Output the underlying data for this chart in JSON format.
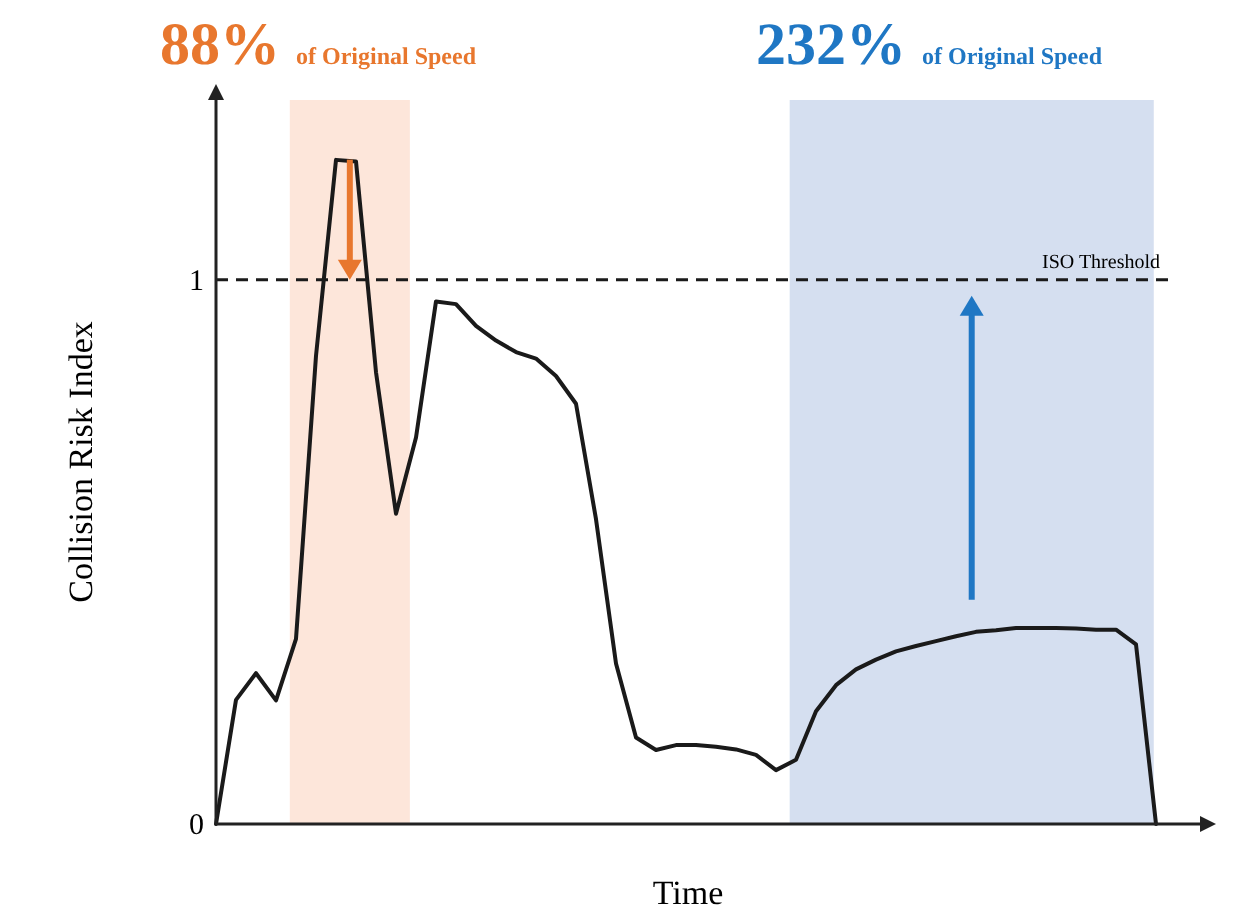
{
  "chart_data": {
    "type": "line",
    "xlabel": "Time",
    "ylabel": "Collision Risk Index",
    "categories": [
      null,
      null,
      null,
      null,
      null,
      null,
      null,
      null,
      null,
      null,
      null,
      null,
      null,
      null,
      null,
      null,
      null,
      null,
      null,
      null,
      null,
      null,
      null,
      null,
      null,
      null,
      null,
      null,
      null,
      null,
      null,
      null,
      null,
      null,
      null,
      null,
      null,
      null,
      null,
      null,
      null,
      null,
      null,
      null,
      null,
      null,
      null,
      null
    ],
    "ylim": [
      0,
      1.33
    ],
    "yticks": [
      0,
      1
    ],
    "tick_labels": "y",
    "grid": false,
    "line_style": "solid",
    "series": [
      {
        "color": "#1a1a1a",
        "values": [
          0,
          0.228,
          0.277,
          0.227,
          0.34,
          0.86,
          1.22,
          1.217,
          0.83,
          0.57,
          0.71,
          0.96,
          0.955,
          0.915,
          0.888,
          0.867,
          0.855,
          0.823,
          0.772,
          0.56,
          0.295,
          0.159,
          0.136,
          0.145,
          0.145,
          0.142,
          0.137,
          0.127,
          0.099,
          0.118,
          0.207,
          0.255,
          0.284,
          0.302,
          0.317,
          0.327,
          0.336,
          0.345,
          0.353,
          0.356,
          0.36,
          0.36,
          0.36,
          0.359,
          0.357,
          0.357,
          0.33,
          0
        ]
      }
    ],
    "ref_lines": [
      {
        "axis": "y",
        "value": 1,
        "label": "ISO Threshold",
        "color": "#1a1a1a",
        "line_style": "dashed"
      }
    ],
    "annotations": [
      "88%",
      "of Original Speed",
      "232%",
      "of Original Speed"
    ]
  }
}
